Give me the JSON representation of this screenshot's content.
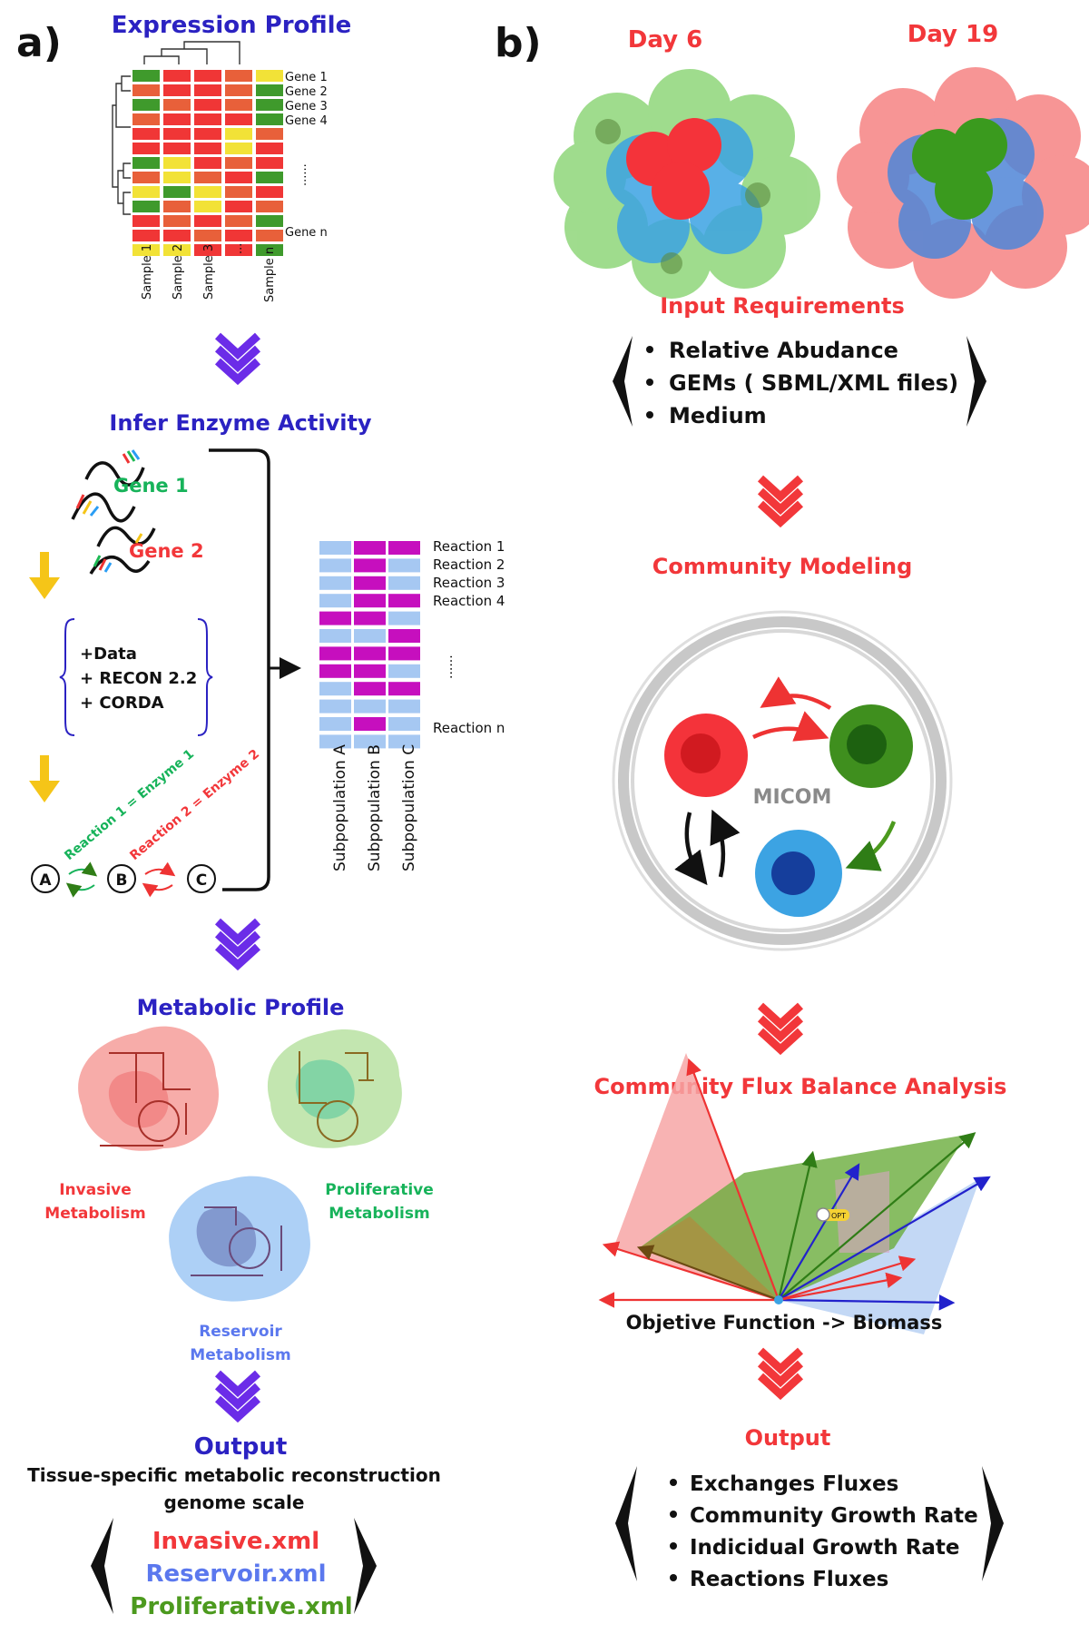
{
  "panel_a": {
    "label": "a)",
    "expression_title": "Expression Profile",
    "heatmap": {
      "genes": [
        "Gene 1",
        "Gene 2",
        "Gene 3",
        "Gene 4",
        "Gene n"
      ],
      "ellipsis": "......",
      "samples": [
        "Sample 1",
        "Sample 2",
        "Sample 3",
        "...",
        "Sample n"
      ],
      "grid": [
        [
          "G",
          "R",
          "R",
          "O",
          "Y"
        ],
        [
          "O",
          "R",
          "R",
          "O",
          "G"
        ],
        [
          "G",
          "O",
          "R",
          "O",
          "G"
        ],
        [
          "O",
          "R",
          "R",
          "R",
          "G"
        ],
        [
          "R",
          "R",
          "R",
          "Y",
          "O"
        ],
        [
          "R",
          "R",
          "R",
          "Y",
          "R"
        ],
        [
          "G",
          "Y",
          "R",
          "O",
          "R"
        ],
        [
          "O",
          "Y",
          "O",
          "R",
          "G"
        ],
        [
          "Y",
          "G",
          "Y",
          "O",
          "R"
        ],
        [
          "G",
          "O",
          "Y",
          "R",
          "O"
        ],
        [
          "R",
          "O",
          "R",
          "O",
          "G"
        ],
        [
          "R",
          "R",
          "O",
          "R",
          "O"
        ],
        [
          "Y",
          "Y",
          "R",
          "R",
          "G"
        ]
      ]
    },
    "infer_title": "Infer Enzyme Activity",
    "gene1": "Gene 1",
    "gene2": "Gene 2",
    "inputs": [
      "+Data",
      "+ RECON 2.2",
      "+ CORDA"
    ],
    "reaction1_label": "Reaction 1 = Enzyme 1",
    "reaction2_label": "Reaction 2 = Enzyme 2",
    "nodes": [
      "A",
      "B",
      "C"
    ],
    "reactions": {
      "labels": [
        "Reaction 1",
        "Reaction 2",
        "Reaction 3",
        "Reaction 4",
        "Reaction n"
      ],
      "ellipsis": "......",
      "subpopulations": [
        "Subpopulation A",
        "Subpopulation B",
        "Subpopulation C"
      ],
      "grid": [
        [
          "L",
          "M",
          "M"
        ],
        [
          "L",
          "M",
          "L"
        ],
        [
          "L",
          "M",
          "L"
        ],
        [
          "L",
          "M",
          "M"
        ],
        [
          "M",
          "M",
          "L"
        ],
        [
          "L",
          "L",
          "M"
        ],
        [
          "M",
          "M",
          "M"
        ],
        [
          "M",
          "M",
          "L"
        ],
        [
          "L",
          "M",
          "M"
        ],
        [
          "L",
          "L",
          "L"
        ],
        [
          "L",
          "M",
          "L"
        ],
        [
          "L",
          "L",
          "L"
        ]
      ]
    },
    "metabolic_title": "Metabolic Profile",
    "invasive_label": [
      "Invasive",
      "Metabolism"
    ],
    "proliferative_label": [
      "Proliferative",
      "Metabolism"
    ],
    "reservoir_label": [
      "Reservoir",
      "Metabolism"
    ],
    "output_title": "Output",
    "output_sub1": "Tissue-specific metabolic reconstruction",
    "output_sub2": "genome scale",
    "output_files": [
      "Invasive.xml",
      "Reservoir.xml",
      "Proliferative.xml"
    ]
  },
  "panel_b": {
    "label": "b)",
    "day6": "Day 6",
    "day19": "Day 19",
    "input_title": "Input Requirements",
    "input_items": [
      "Relative Abudance",
      "GEMs ( SBML/XML files)",
      "Medium"
    ],
    "community_title": "Community Modeling",
    "micom": "MICOM",
    "fba_title": "Community Flux Balance Analysis",
    "opt": "OPT",
    "objective": "Objetive Function -> Biomass",
    "output_title": "Output",
    "output_items": [
      "Exchanges Fluxes",
      "Community Growth Rate",
      "Indicidual Growth Rate",
      "Reactions Fluxes"
    ]
  },
  "colors": {
    "navy": "#2b22c2",
    "red": "#f2373a",
    "green": "#17b35a",
    "blue": "#5b78ee",
    "dkgreen": "#4c9a1e",
    "purple": "#6b2ce8",
    "yellow": "#f5c518",
    "heat_green": "#3f9a2c",
    "heat_red": "#f03636",
    "heat_orange": "#e8603a",
    "heat_yellow": "#f2e237",
    "magenta": "#c60fbe",
    "lightblue": "#a6c8f2"
  }
}
